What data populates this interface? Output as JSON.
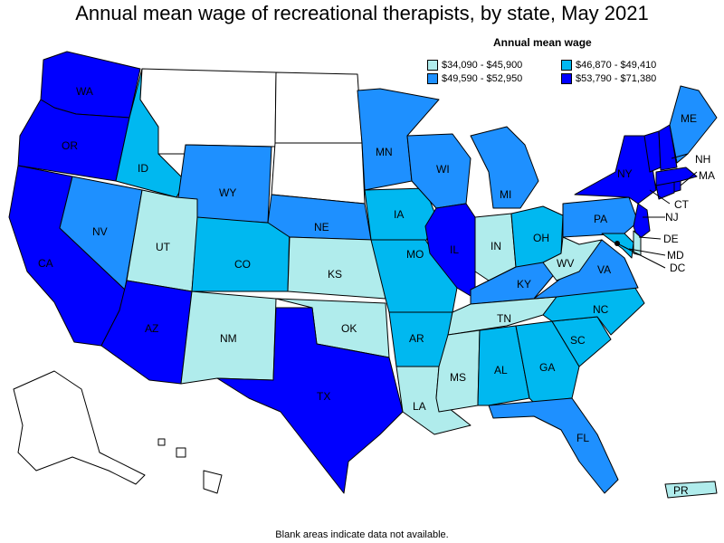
{
  "title": "Annual mean wage of recreational therapists, by state, May 2021",
  "legend": {
    "title": "Annual mean wage",
    "bins": [
      {
        "label": "$34,090 - $45,900",
        "color": "#b0ecec"
      },
      {
        "label": "$46,870 - $49,410",
        "color": "#00b8f0"
      },
      {
        "label": "$49,590 - $52,950",
        "color": "#1e90ff"
      },
      {
        "label": "$53,790 - $71,380",
        "color": "#0000ff"
      }
    ]
  },
  "footnote": "Blank areas indicate data not available.",
  "states": {
    "WA": {
      "bin": 3
    },
    "OR": {
      "bin": 3
    },
    "CA": {
      "bin": 3
    },
    "NV": {
      "bin": 2
    },
    "ID": {
      "bin": 1
    },
    "MT": {
      "bin": null
    },
    "WY": {
      "bin": 2
    },
    "UT": {
      "bin": 0
    },
    "AZ": {
      "bin": 3
    },
    "CO": {
      "bin": 1
    },
    "NM": {
      "bin": 0
    },
    "ND": {
      "bin": null
    },
    "SD": {
      "bin": null
    },
    "NE": {
      "bin": 2
    },
    "KS": {
      "bin": 0
    },
    "OK": {
      "bin": 0
    },
    "TX": {
      "bin": 3
    },
    "MN": {
      "bin": 2
    },
    "IA": {
      "bin": 1
    },
    "MO": {
      "bin": 1
    },
    "AR": {
      "bin": 1
    },
    "LA": {
      "bin": 0
    },
    "WI": {
      "bin": 2
    },
    "IL": {
      "bin": 3
    },
    "MI": {
      "bin": 2
    },
    "IN": {
      "bin": 0
    },
    "OH": {
      "bin": 1
    },
    "KY": {
      "bin": 2
    },
    "TN": {
      "bin": 0
    },
    "MS": {
      "bin": 0
    },
    "AL": {
      "bin": 1
    },
    "GA": {
      "bin": 1
    },
    "FL": {
      "bin": 2
    },
    "SC": {
      "bin": 1
    },
    "NC": {
      "bin": 1
    },
    "VA": {
      "bin": 2
    },
    "WV": {
      "bin": 0
    },
    "PA": {
      "bin": 2
    },
    "NY": {
      "bin": 3
    },
    "NJ": {
      "bin": 3
    },
    "DE": {
      "bin": 0
    },
    "MD": {
      "bin": 1
    },
    "DC": {
      "bin": 3
    },
    "CT": {
      "bin": 3
    },
    "RI": {
      "bin": 3
    },
    "MA": {
      "bin": 3
    },
    "VT": {
      "bin": 3
    },
    "NH": {
      "bin": 3
    },
    "ME": {
      "bin": 2
    },
    "AK": {
      "bin": null
    },
    "HI": {
      "bin": null
    },
    "PR": {
      "bin": 0
    }
  }
}
